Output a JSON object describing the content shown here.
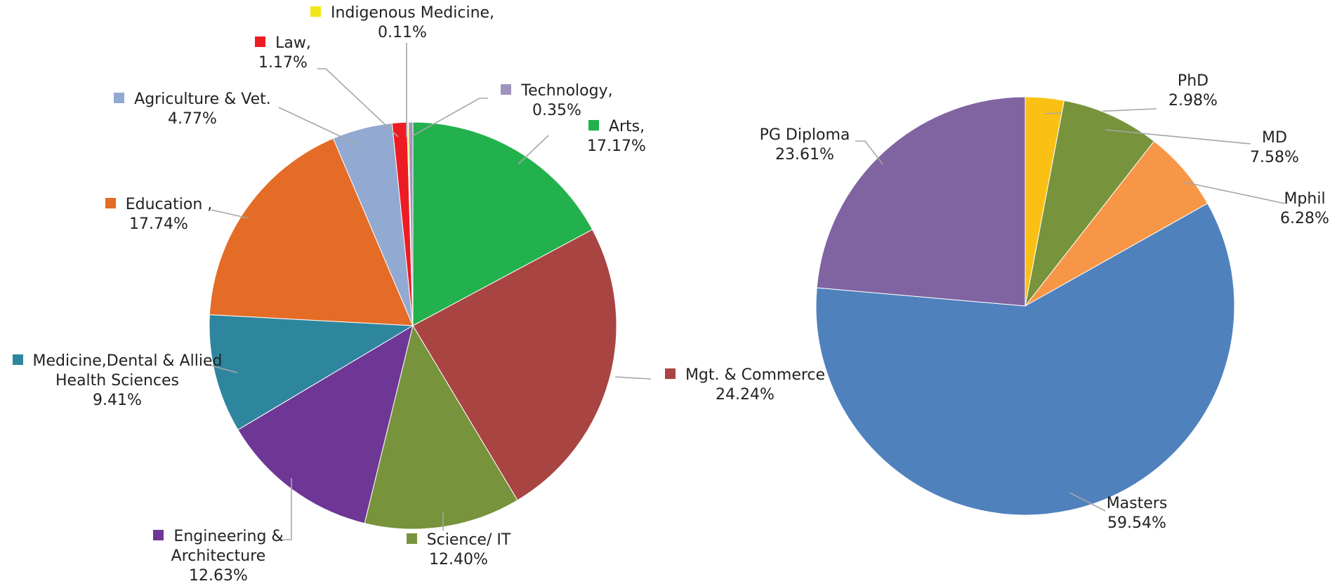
{
  "chart_data": [
    {
      "type": "pie",
      "categories": [
        "Arts,",
        "Mgt. & Commerce",
        "Science/ IT",
        "Engineering & Architecture",
        "Medicine,Dental & Allied Health Sciences",
        "Education ,",
        "Agriculture & Vet.",
        "Law,",
        "Indigenous Medicine,",
        "Technology,"
      ],
      "values": [
        17.17,
        24.24,
        12.4,
        12.63,
        9.41,
        17.74,
        4.77,
        1.17,
        0.11,
        0.35
      ],
      "value_labels": [
        "17.17%",
        "24.24%",
        "12.40%",
        "12.63%",
        "9.41%",
        "17.74%",
        "4.77%",
        "1.17%",
        "0.11%",
        "0.35%"
      ],
      "colors": [
        "#22b14c",
        "#a84543",
        "#77933c",
        "#6f3795",
        "#2e869e",
        "#e46c26",
        "#92a9d1",
        "#ed1c24",
        "#f3e71a",
        "#a094bf"
      ]
    },
    {
      "type": "pie",
      "categories": [
        "PhD",
        "MD",
        "Mphil",
        "Masters",
        "PG Diploma"
      ],
      "values": [
        2.98,
        7.58,
        6.28,
        59.54,
        23.61
      ],
      "value_labels": [
        "2.98%",
        "7.58%",
        "6.28%",
        "59.54%",
        "23.61%"
      ],
      "colors": [
        "#fac013",
        "#77933c",
        "#f79646",
        "#4f81bd",
        "#8064a2"
      ]
    }
  ]
}
